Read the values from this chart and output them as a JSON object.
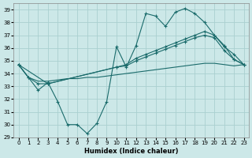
{
  "xlabel": "Humidex (Indice chaleur)",
  "ylabel": "",
  "background_color": "#cce8e8",
  "grid_color": "#aad0d0",
  "line_color": "#1a6b6b",
  "xlim": [
    -0.5,
    23.5
  ],
  "ylim": [
    29,
    39.5
  ],
  "yticks": [
    29,
    30,
    31,
    32,
    33,
    34,
    35,
    36,
    37,
    38,
    39
  ],
  "xticks": [
    0,
    1,
    2,
    3,
    4,
    5,
    6,
    7,
    8,
    9,
    10,
    11,
    12,
    13,
    14,
    15,
    16,
    17,
    18,
    19,
    20,
    21,
    22,
    23
  ],
  "s1_x": [
    0,
    1,
    2,
    3,
    4,
    5,
    6,
    7,
    8,
    9,
    10,
    11,
    12,
    13,
    14,
    15,
    16,
    17,
    18,
    19,
    20,
    21,
    22,
    23
  ],
  "s1_y": [
    34.7,
    33.7,
    32.7,
    33.3,
    31.8,
    30.0,
    30.0,
    29.3,
    30.1,
    31.8,
    36.1,
    34.5,
    36.2,
    38.7,
    38.5,
    37.7,
    38.8,
    39.1,
    38.7,
    38.0,
    37.0,
    36.2,
    35.1,
    34.7
  ],
  "s2_x": [
    0,
    1,
    2,
    3,
    10,
    11,
    12,
    13,
    14,
    15,
    16,
    17,
    18,
    19,
    20,
    21,
    22,
    23
  ],
  "s2_y": [
    34.7,
    33.7,
    33.2,
    33.2,
    34.5,
    34.6,
    35.0,
    35.3,
    35.6,
    35.9,
    36.2,
    36.5,
    36.8,
    37.0,
    36.8,
    35.8,
    35.1,
    34.7
  ],
  "s3_x": [
    0,
    3,
    10,
    11,
    12,
    13,
    14,
    15,
    16,
    17,
    18,
    19,
    20,
    21,
    22,
    23
  ],
  "s3_y": [
    34.7,
    33.2,
    34.5,
    34.7,
    35.2,
    35.5,
    35.8,
    36.1,
    36.4,
    36.7,
    37.0,
    37.3,
    37.0,
    36.1,
    35.5,
    34.7
  ],
  "s4_x": [
    0,
    1,
    2,
    3,
    4,
    5,
    6,
    7,
    8,
    9,
    10,
    11,
    12,
    13,
    14,
    15,
    16,
    17,
    18,
    19,
    20,
    21,
    22,
    23
  ],
  "s4_y": [
    34.7,
    33.7,
    33.4,
    33.4,
    33.5,
    33.6,
    33.6,
    33.7,
    33.7,
    33.8,
    33.9,
    34.0,
    34.1,
    34.2,
    34.3,
    34.4,
    34.5,
    34.6,
    34.7,
    34.8,
    34.8,
    34.7,
    34.6,
    34.7
  ]
}
